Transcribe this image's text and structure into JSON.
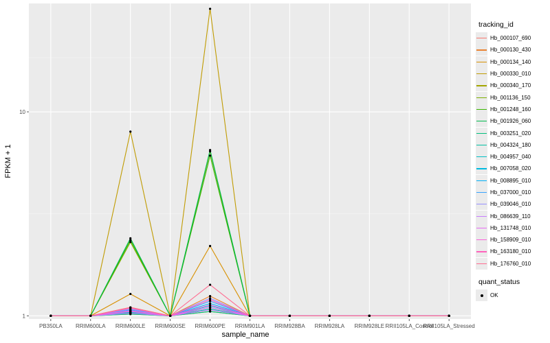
{
  "chart_data": {
    "type": "line",
    "xlabel": "sample_name",
    "ylabel": "FPKM + 1",
    "yscale": "log",
    "yticks": [
      1,
      10
    ],
    "ytick_labels": [
      "1",
      "10"
    ],
    "ylim": [
      0.965,
      34
    ],
    "grid": true,
    "legend_position": "right",
    "categories": [
      "PB350LA",
      "RRIM600LA",
      "RRIM600LE",
      "RRIM600SE",
      "RRIM600PE",
      "RRIM901LA",
      "RRIM928BA",
      "RRIM928LA",
      "RRIM928LE",
      "RRII105LA_Control",
      "RRII105LA_Stressed"
    ],
    "legend_title": "tracking_id",
    "series": [
      {
        "name": "Hb_000107_690",
        "color": "#F8766D",
        "values": [
          1,
          1,
          1.04,
          1,
          1.1,
          1,
          1,
          1,
          1,
          1,
          1
        ]
      },
      {
        "name": "Hb_000130_430",
        "color": "#EA8331",
        "values": [
          1,
          1,
          1.1,
          1,
          1.25,
          1,
          1,
          1,
          1,
          1,
          1
        ]
      },
      {
        "name": "Hb_000134_140",
        "color": "#D89000",
        "values": [
          1,
          1,
          1.28,
          1,
          2.2,
          1,
          1,
          1,
          1,
          1,
          1
        ]
      },
      {
        "name": "Hb_000330_010",
        "color": "#C09B00",
        "values": [
          1,
          1,
          8.0,
          1,
          32.0,
          1,
          1,
          1,
          1,
          1,
          1
        ]
      },
      {
        "name": "Hb_000340_170",
        "color": "#A3A500",
        "values": [
          1,
          1,
          1.02,
          1,
          1.05,
          1,
          1,
          1,
          1,
          1,
          1
        ]
      },
      {
        "name": "Hb_001136_150",
        "color": "#7CAE00",
        "values": [
          1,
          1,
          2.3,
          1,
          6.4,
          1,
          1,
          1,
          1,
          1,
          1
        ]
      },
      {
        "name": "Hb_001248_160",
        "color": "#39B600",
        "values": [
          1,
          1,
          2.35,
          1,
          6.1,
          1,
          1,
          1,
          1,
          1,
          1
        ]
      },
      {
        "name": "Hb_001926_060",
        "color": "#00BB4E",
        "values": [
          1,
          1,
          2.4,
          1,
          6.5,
          1,
          1,
          1,
          1,
          1,
          1
        ]
      },
      {
        "name": "Hb_003251_020",
        "color": "#00BF7D",
        "values": [
          1,
          1,
          1.02,
          1,
          1.05,
          1,
          1,
          1,
          1,
          1,
          1
        ]
      },
      {
        "name": "Hb_004324_180",
        "color": "#00C1A3",
        "values": [
          1,
          1,
          1.03,
          1,
          1.08,
          1,
          1,
          1,
          1,
          1,
          1
        ]
      },
      {
        "name": "Hb_004957_040",
        "color": "#00BFC4",
        "values": [
          1,
          1,
          1.04,
          1,
          1.1,
          1,
          1,
          1,
          1,
          1,
          1
        ]
      },
      {
        "name": "Hb_007058_020",
        "color": "#00BAE0",
        "values": [
          1,
          1,
          1.05,
          1,
          1.12,
          1,
          1,
          1,
          1,
          1,
          1
        ]
      },
      {
        "name": "Hb_008895_010",
        "color": "#00B0F6",
        "values": [
          1,
          1,
          1.06,
          1,
          1.15,
          1,
          1,
          1,
          1,
          1,
          1
        ]
      },
      {
        "name": "Hb_037000_010",
        "color": "#35A2FF",
        "values": [
          1,
          1,
          1.07,
          1,
          1.18,
          1,
          1,
          1,
          1,
          1,
          1
        ]
      },
      {
        "name": "Hb_039046_010",
        "color": "#9590FF",
        "values": [
          1,
          1,
          1.08,
          1,
          1.22,
          1,
          1,
          1,
          1,
          1,
          1
        ]
      },
      {
        "name": "Hb_086639_110",
        "color": "#C77CFF",
        "values": [
          1,
          1,
          1.03,
          1,
          1.07,
          1,
          1,
          1,
          1,
          1,
          1
        ]
      },
      {
        "name": "Hb_131748_010",
        "color": "#E76BF3",
        "values": [
          1,
          1,
          1.05,
          1,
          1.1,
          1,
          1,
          1,
          1,
          1,
          1
        ]
      },
      {
        "name": "Hb_158909_010",
        "color": "#FA62DB",
        "values": [
          1,
          1,
          1.06,
          1,
          1.13,
          1,
          1,
          1,
          1,
          1,
          1
        ]
      },
      {
        "name": "Hb_163180_010",
        "color": "#FF62BC",
        "values": [
          1,
          1,
          1.09,
          1,
          1.2,
          1,
          1,
          1,
          1,
          1,
          1
        ]
      },
      {
        "name": "Hb_176760_010",
        "color": "#FF6C91",
        "values": [
          1,
          1,
          1.1,
          1,
          1.42,
          1,
          1,
          1,
          1,
          1,
          1
        ]
      }
    ],
    "quant_status_legend": {
      "title": "quant_status",
      "items": [
        "OK"
      ]
    }
  }
}
